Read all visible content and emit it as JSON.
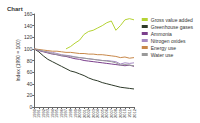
{
  "chart_data": {
    "type": "line",
    "title": "Chart",
    "y_label": "Index (1990 = 100)",
    "x": [
      "1990",
      "1991",
      "1992",
      "1993",
      "1994",
      "1995",
      "1996",
      "1997",
      "1998",
      "1999",
      "2000",
      "2001",
      "2002",
      "2003",
      "2004",
      "2005",
      "2006",
      "2007",
      "2008",
      "2009",
      "2010",
      "2011",
      "2012"
    ],
    "ylim": [
      0,
      160
    ],
    "yticks": [
      0,
      20,
      40,
      60,
      80,
      100,
      120,
      140,
      160
    ],
    "grid": false,
    "legend": "right",
    "series": [
      {
        "name": "Gross value added",
        "color": "#b5d334",
        "values": [
          null,
          null,
          null,
          null,
          null,
          null,
          null,
          100,
          104,
          110,
          115,
          125,
          130,
          132,
          136,
          140,
          145,
          148,
          132,
          140,
          150,
          152,
          150
        ]
      },
      {
        "name": "Greenhouse gases",
        "color": "#2e3a2a",
        "values": [
          100,
          95,
          88,
          82,
          78,
          74,
          70,
          66,
          62,
          60,
          57,
          54,
          50,
          47,
          45,
          42,
          40,
          38,
          36,
          34,
          33,
          32,
          31
        ]
      },
      {
        "name": "Ammonia",
        "color": "#7b3f8c",
        "values": [
          100,
          97,
          95,
          93,
          91,
          90,
          88,
          87,
          85,
          83,
          82,
          80,
          79,
          78,
          77,
          76,
          75,
          74,
          73,
          72,
          71,
          72,
          70
        ]
      },
      {
        "name": "Nitrogen oxides",
        "color": "#a78bc4",
        "values": [
          100,
          98,
          96,
          95,
          94,
          92,
          90,
          89,
          88,
          86,
          85,
          84,
          83,
          82,
          81,
          80,
          80,
          79,
          78,
          74,
          76,
          75,
          76
        ]
      },
      {
        "name": "Energy use",
        "color": "#c8884a",
        "values": [
          100,
          99,
          98,
          97,
          96,
          96,
          95,
          94,
          94,
          93,
          92,
          92,
          91,
          91,
          90,
          90,
          89,
          88,
          87,
          85,
          86,
          84,
          85
        ]
      },
      {
        "name": "Water use",
        "color": "#999999",
        "values": [
          100,
          98,
          96,
          94,
          92,
          90,
          89,
          88,
          87,
          86,
          85,
          84,
          83,
          82,
          81,
          80,
          79,
          78,
          76,
          72,
          73,
          72,
          71
        ]
      }
    ]
  }
}
